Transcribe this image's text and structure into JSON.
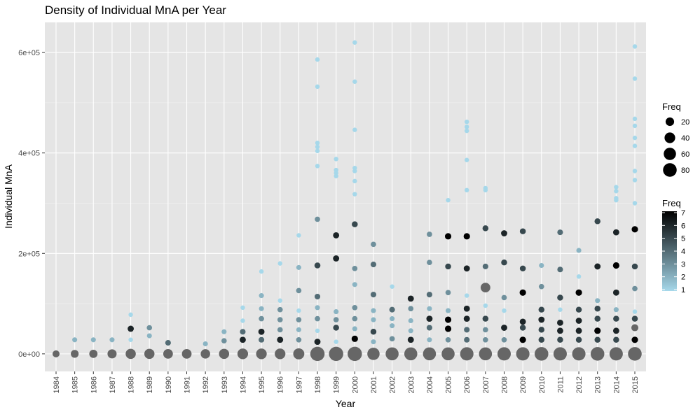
{
  "chart_data": {
    "type": "scatter",
    "title": "Density of Individual MnA per Year",
    "xlabel": "Year",
    "ylabel": "Individual MnA",
    "grid": true,
    "xlim": [
      1983.4,
      2015.6
    ],
    "ylim": [
      -35000,
      660000
    ],
    "x_ticks": [
      1984,
      1985,
      1986,
      1987,
      1988,
      1989,
      1990,
      1991,
      1992,
      1993,
      1994,
      1995,
      1996,
      1997,
      1998,
      1999,
      2000,
      2001,
      2002,
      2003,
      2004,
      2005,
      2006,
      2007,
      2008,
      2009,
      2010,
      2011,
      2012,
      2013,
      2014,
      2015
    ],
    "y_ticks": [
      {
        "value": 0,
        "label": "0e+00"
      },
      {
        "value": 200000,
        "label": "2e+05"
      },
      {
        "value": 400000,
        "label": "4e+05"
      },
      {
        "value": 600000,
        "label": "6e+05"
      }
    ],
    "color_scale": {
      "low": "#a6d8ea",
      "high": "#000000",
      "min": 1,
      "max": 7
    },
    "size_scale": {
      "min": 1,
      "max": 90
    },
    "legend_size": {
      "title": "Freq",
      "values": [
        20,
        40,
        60,
        80
      ],
      "labels": [
        "20",
        "40",
        "60",
        "80"
      ],
      "placement": "right"
    },
    "legend_color": {
      "title": "Freq",
      "ticks": [
        1,
        2,
        3,
        4,
        5,
        6,
        7
      ],
      "labels": [
        "1",
        "2",
        "3",
        "4",
        "5",
        "6",
        "7"
      ],
      "placement": "right"
    },
    "points": [
      [
        1984,
        0,
        10
      ],
      [
        1985,
        0,
        15
      ],
      [
        1985,
        28000,
        2
      ],
      [
        1986,
        0,
        18
      ],
      [
        1986,
        28000,
        2
      ],
      [
        1987,
        0,
        25
      ],
      [
        1987,
        28000,
        2
      ],
      [
        1988,
        0,
        35
      ],
      [
        1988,
        28000,
        1
      ],
      [
        1988,
        50000,
        6
      ],
      [
        1988,
        78000,
        1
      ],
      [
        1989,
        0,
        35
      ],
      [
        1989,
        36000,
        2
      ],
      [
        1989,
        52000,
        3
      ],
      [
        1990,
        0,
        30
      ],
      [
        1990,
        22000,
        4
      ],
      [
        1991,
        0,
        30
      ],
      [
        1992,
        0,
        28
      ],
      [
        1992,
        20000,
        2
      ],
      [
        1993,
        0,
        35
      ],
      [
        1993,
        26000,
        3
      ],
      [
        1993,
        44000,
        2
      ],
      [
        1994,
        0,
        40
      ],
      [
        1994,
        28000,
        6
      ],
      [
        1994,
        44000,
        4
      ],
      [
        1994,
        66000,
        1
      ],
      [
        1994,
        92000,
        1
      ],
      [
        1995,
        0,
        40
      ],
      [
        1995,
        28000,
        4
      ],
      [
        1995,
        44000,
        6
      ],
      [
        1995,
        70000,
        3
      ],
      [
        1995,
        90000,
        2
      ],
      [
        1995,
        116000,
        2
      ],
      [
        1995,
        164000,
        1
      ],
      [
        1996,
        0,
        40
      ],
      [
        1996,
        28000,
        6
      ],
      [
        1996,
        48000,
        3
      ],
      [
        1996,
        68000,
        3
      ],
      [
        1996,
        88000,
        3
      ],
      [
        1996,
        106000,
        1
      ],
      [
        1996,
        180000,
        1
      ],
      [
        1997,
        0,
        45
      ],
      [
        1997,
        28000,
        3
      ],
      [
        1997,
        48000,
        2
      ],
      [
        1997,
        68000,
        3
      ],
      [
        1997,
        86000,
        1
      ],
      [
        1997,
        126000,
        3
      ],
      [
        1997,
        172000,
        2
      ],
      [
        1997,
        236000,
        1
      ],
      [
        1998,
        0,
        90
      ],
      [
        1998,
        24000,
        6
      ],
      [
        1998,
        46000,
        1
      ],
      [
        1998,
        70000,
        3
      ],
      [
        1998,
        92000,
        2
      ],
      [
        1998,
        114000,
        4
      ],
      [
        1998,
        176000,
        5
      ],
      [
        1998,
        268000,
        3
      ],
      [
        1998,
        374000,
        1
      ],
      [
        1998,
        404000,
        1
      ],
      [
        1998,
        412000,
        1
      ],
      [
        1998,
        420000,
        1
      ],
      [
        1998,
        532000,
        1
      ],
      [
        1998,
        586000,
        1
      ],
      [
        1999,
        0,
        90
      ],
      [
        1999,
        24000,
        1
      ],
      [
        1999,
        52000,
        5
      ],
      [
        1999,
        68000,
        3
      ],
      [
        1999,
        84000,
        2
      ],
      [
        1999,
        190000,
        6
      ],
      [
        1999,
        236000,
        6
      ],
      [
        1999,
        354000,
        1
      ],
      [
        1999,
        360000,
        1
      ],
      [
        1999,
        366000,
        1
      ],
      [
        1999,
        388000,
        1
      ],
      [
        2000,
        0,
        90
      ],
      [
        2000,
        30000,
        7
      ],
      [
        2000,
        50000,
        2
      ],
      [
        2000,
        70000,
        3
      ],
      [
        2000,
        92000,
        3
      ],
      [
        2000,
        138000,
        2
      ],
      [
        2000,
        170000,
        3
      ],
      [
        2000,
        258000,
        5
      ],
      [
        2000,
        318000,
        1
      ],
      [
        2000,
        344000,
        1
      ],
      [
        2000,
        364000,
        1
      ],
      [
        2000,
        370000,
        1
      ],
      [
        2000,
        446000,
        1
      ],
      [
        2000,
        542000,
        1
      ],
      [
        2000,
        620000,
        1
      ],
      [
        2001,
        0,
        60
      ],
      [
        2001,
        24000,
        2
      ],
      [
        2001,
        44000,
        5
      ],
      [
        2001,
        68000,
        2
      ],
      [
        2001,
        86000,
        2
      ],
      [
        2001,
        118000,
        4
      ],
      [
        2001,
        178000,
        4
      ],
      [
        2001,
        218000,
        3
      ],
      [
        2002,
        0,
        70
      ],
      [
        2002,
        30000,
        3
      ],
      [
        2002,
        56000,
        2
      ],
      [
        2002,
        70000,
        2
      ],
      [
        2002,
        88000,
        4
      ],
      [
        2002,
        134000,
        1
      ],
      [
        2003,
        0,
        70
      ],
      [
        2003,
        28000,
        6
      ],
      [
        2003,
        46000,
        2
      ],
      [
        2003,
        66000,
        2
      ],
      [
        2003,
        90000,
        3
      ],
      [
        2003,
        110000,
        6
      ],
      [
        2004,
        0,
        70
      ],
      [
        2004,
        28000,
        2
      ],
      [
        2004,
        52000,
        4
      ],
      [
        2004,
        70000,
        6
      ],
      [
        2004,
        90000,
        2
      ],
      [
        2004,
        118000,
        4
      ],
      [
        2004,
        182000,
        3
      ],
      [
        2004,
        238000,
        3
      ],
      [
        2005,
        0,
        70
      ],
      [
        2005,
        28000,
        3
      ],
      [
        2005,
        50000,
        7
      ],
      [
        2005,
        68000,
        7
      ],
      [
        2005,
        86000,
        2
      ],
      [
        2005,
        122000,
        3
      ],
      [
        2005,
        174000,
        5
      ],
      [
        2005,
        234000,
        7
      ],
      [
        2005,
        306000,
        1
      ],
      [
        2006,
        0,
        75
      ],
      [
        2006,
        28000,
        4
      ],
      [
        2006,
        48000,
        4
      ],
      [
        2006,
        70000,
        6
      ],
      [
        2006,
        90000,
        6
      ],
      [
        2006,
        116000,
        1
      ],
      [
        2006,
        170000,
        6
      ],
      [
        2006,
        234000,
        7
      ],
      [
        2006,
        326000,
        1
      ],
      [
        2006,
        386000,
        1
      ],
      [
        2006,
        444000,
        1
      ],
      [
        2006,
        452000,
        1
      ],
      [
        2006,
        462000,
        1
      ],
      [
        2007,
        0,
        70
      ],
      [
        2007,
        28000,
        3
      ],
      [
        2007,
        48000,
        3
      ],
      [
        2007,
        70000,
        5
      ],
      [
        2007,
        96000,
        1
      ],
      [
        2007,
        132000,
        30
      ],
      [
        2007,
        174000,
        4
      ],
      [
        2007,
        250000,
        5
      ],
      [
        2007,
        326000,
        1
      ],
      [
        2007,
        330000,
        1
      ],
      [
        2008,
        0,
        75
      ],
      [
        2008,
        28000,
        3
      ],
      [
        2008,
        52000,
        6
      ],
      [
        2008,
        86000,
        1
      ],
      [
        2008,
        112000,
        3
      ],
      [
        2008,
        182000,
        5
      ],
      [
        2008,
        240000,
        6
      ],
      [
        2009,
        0,
        75
      ],
      [
        2009,
        28000,
        7
      ],
      [
        2009,
        52000,
        5
      ],
      [
        2009,
        64000,
        6
      ],
      [
        2009,
        122000,
        7
      ],
      [
        2009,
        170000,
        5
      ],
      [
        2009,
        244000,
        5
      ],
      [
        2010,
        0,
        80
      ],
      [
        2010,
        28000,
        5
      ],
      [
        2010,
        48000,
        5
      ],
      [
        2010,
        68000,
        6
      ],
      [
        2010,
        88000,
        5
      ],
      [
        2010,
        134000,
        3
      ],
      [
        2010,
        176000,
        2
      ],
      [
        2011,
        0,
        75
      ],
      [
        2011,
        28000,
        5
      ],
      [
        2011,
        46000,
        6
      ],
      [
        2011,
        62000,
        6
      ],
      [
        2011,
        88000,
        1
      ],
      [
        2011,
        112000,
        5
      ],
      [
        2011,
        168000,
        4
      ],
      [
        2011,
        242000,
        4
      ],
      [
        2012,
        0,
        75
      ],
      [
        2012,
        28000,
        5
      ],
      [
        2012,
        46000,
        6
      ],
      [
        2012,
        66000,
        6
      ],
      [
        2012,
        88000,
        5
      ],
      [
        2012,
        122000,
        7
      ],
      [
        2012,
        154000,
        1
      ],
      [
        2012,
        206000,
        2
      ],
      [
        2013,
        0,
        80
      ],
      [
        2013,
        28000,
        5
      ],
      [
        2013,
        46000,
        7
      ],
      [
        2013,
        70000,
        5
      ],
      [
        2013,
        90000,
        5
      ],
      [
        2013,
        106000,
        2
      ],
      [
        2013,
        174000,
        6
      ],
      [
        2013,
        264000,
        5
      ],
      [
        2014,
        0,
        75
      ],
      [
        2014,
        28000,
        5
      ],
      [
        2014,
        46000,
        6
      ],
      [
        2014,
        70000,
        5
      ],
      [
        2014,
        88000,
        2
      ],
      [
        2014,
        122000,
        6
      ],
      [
        2014,
        176000,
        7
      ],
      [
        2014,
        242000,
        6
      ],
      [
        2014,
        306000,
        1
      ],
      [
        2014,
        310000,
        1
      ],
      [
        2014,
        324000,
        1
      ],
      [
        2014,
        332000,
        1
      ],
      [
        2015,
        0,
        80
      ],
      [
        2015,
        28000,
        7
      ],
      [
        2015,
        52000,
        10
      ],
      [
        2015,
        70000,
        5
      ],
      [
        2015,
        84000,
        1
      ],
      [
        2015,
        130000,
        3
      ],
      [
        2015,
        174000,
        5
      ],
      [
        2015,
        248000,
        7
      ],
      [
        2015,
        300000,
        1
      ],
      [
        2015,
        346000,
        1
      ],
      [
        2015,
        364000,
        1
      ],
      [
        2015,
        414000,
        1
      ],
      [
        2015,
        430000,
        1
      ],
      [
        2015,
        454000,
        1
      ],
      [
        2015,
        468000,
        1
      ],
      [
        2015,
        548000,
        1
      ],
      [
        2015,
        612000,
        1
      ]
    ]
  }
}
